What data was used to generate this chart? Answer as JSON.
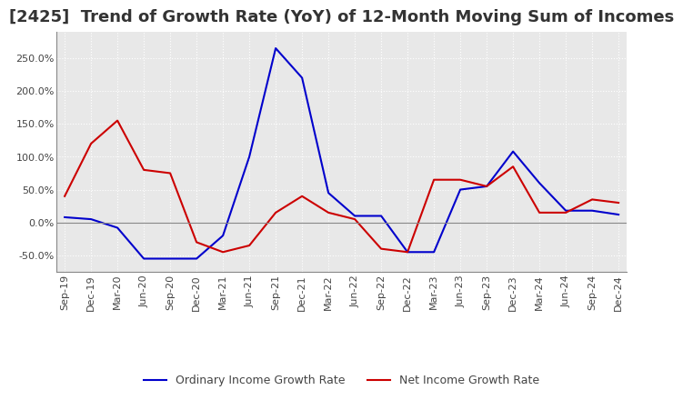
{
  "title": "[2425]  Trend of Growth Rate (YoY) of 12-Month Moving Sum of Incomes",
  "legend_labels": [
    "Ordinary Income Growth Rate",
    "Net Income Growth Rate"
  ],
  "line_colors": [
    "#0000cc",
    "#cc0000"
  ],
  "background_color": "#ffffff",
  "plot_bg_color": "#e8e8e8",
  "grid_color": "#ffffff",
  "xlabels": [
    "Sep-19",
    "Dec-19",
    "Mar-20",
    "Jun-20",
    "Sep-20",
    "Dec-20",
    "Mar-21",
    "Jun-21",
    "Sep-21",
    "Dec-21",
    "Mar-22",
    "Jun-22",
    "Sep-22",
    "Dec-22",
    "Mar-23",
    "Jun-23",
    "Sep-23",
    "Dec-23",
    "Mar-24",
    "Jun-24",
    "Sep-24",
    "Dec-24"
  ],
  "ordinary_income": [
    8.0,
    5.0,
    -8.0,
    -55.0,
    -55.0,
    -55.0,
    -20.0,
    100.0,
    265.0,
    220.0,
    45.0,
    10.0,
    10.0,
    -45.0,
    -45.0,
    50.0,
    55.0,
    108.0,
    60.0,
    18.0,
    18.0,
    12.0
  ],
  "net_income": [
    40.0,
    120.0,
    155.0,
    80.0,
    75.0,
    -30.0,
    -45.0,
    -35.0,
    15.0,
    40.0,
    15.0,
    5.0,
    -40.0,
    -45.0,
    65.0,
    65.0,
    55.0,
    85.0,
    15.0,
    15.0,
    35.0,
    30.0
  ],
  "ylim": [
    -75,
    290
  ],
  "yticks": [
    -50.0,
    0.0,
    50.0,
    100.0,
    150.0,
    200.0,
    250.0
  ],
  "title_fontsize": 13,
  "tick_fontsize": 8,
  "legend_fontsize": 9
}
